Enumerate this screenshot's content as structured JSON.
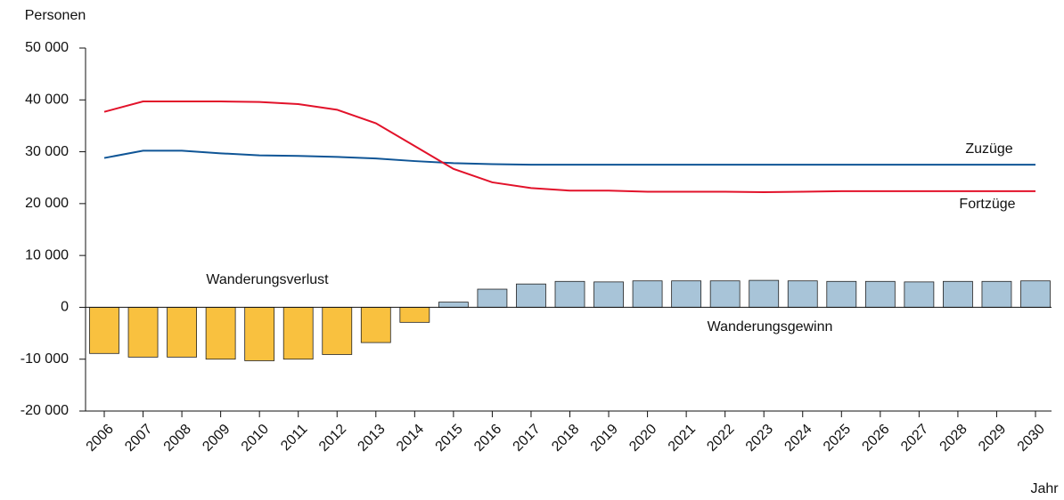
{
  "chart_data": {
    "type": "bar",
    "y_axis_label": "Personen",
    "x_axis_label": "Jahr",
    "categories": [
      "2006",
      "2007",
      "2008",
      "2009",
      "2010",
      "2011",
      "2012",
      "2013",
      "2014",
      "2015",
      "2016",
      "2017",
      "2018",
      "2019",
      "2020",
      "2021",
      "2022",
      "2023",
      "2024",
      "2025",
      "2026",
      "2027",
      "2028",
      "2029",
      "2030"
    ],
    "series": [
      {
        "type": "bar",
        "color_negative": "#f9c13f",
        "color_positive": "#a8c4d8",
        "values": [
          -8900,
          -9600,
          -9600,
          -10000,
          -10300,
          -10000,
          -9100,
          -6800,
          -2900,
          1000,
          3500,
          4500,
          5000,
          4900,
          5100,
          5100,
          5100,
          5200,
          5100,
          5000,
          5000,
          4900,
          5000,
          5000,
          5100
        ]
      },
      {
        "type": "line",
        "name": "Zuzüge",
        "color": "#0f5596",
        "values": [
          28800,
          30200,
          30200,
          29700,
          29300,
          29200,
          29000,
          28700,
          28200,
          27800,
          27600,
          27500,
          27500,
          27500,
          27500,
          27500,
          27500,
          27500,
          27500,
          27500,
          27500,
          27500,
          27500,
          27500,
          27500
        ]
      },
      {
        "type": "line",
        "name": "Fortzüge",
        "color": "#e2122a",
        "values": [
          37700,
          39700,
          39700,
          39700,
          39600,
          39200,
          38100,
          35500,
          31100,
          26700,
          24100,
          23000,
          22500,
          22500,
          22300,
          22300,
          22300,
          22200,
          22300,
          22400,
          22400,
          22400,
          22400,
          22400,
          22400
        ]
      }
    ],
    "annotations": [
      "Wanderungsverlust",
      "Wanderungsgewinn"
    ],
    "ylim": [
      -20000,
      50000
    ],
    "yticks": [
      {
        "value": -20000,
        "label": "-20 000"
      },
      {
        "value": -10000,
        "label": "-10 000"
      },
      0,
      {
        "value": 10000,
        "label": "10 000"
      },
      {
        "value": 20000,
        "label": "20 000"
      },
      {
        "value": 30000,
        "label": "30 000"
      },
      {
        "value": 40000,
        "label": "40 000"
      },
      {
        "value": 50000,
        "label": "50 000"
      }
    ]
  }
}
